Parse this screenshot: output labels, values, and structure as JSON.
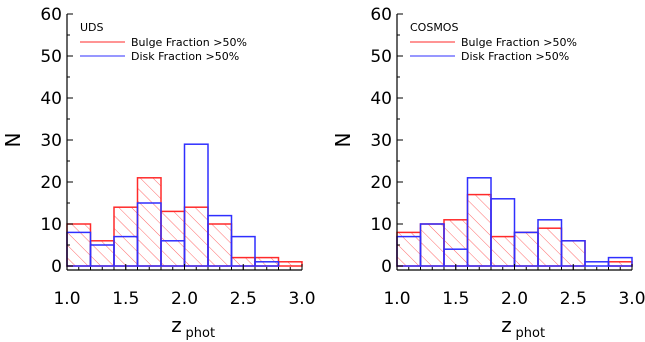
{
  "chart_data": [
    {
      "type": "histogram",
      "panel_label": "UDS",
      "xlabel": "z",
      "xlabel_sub": "phot",
      "ylabel": "N",
      "xlim": [
        1.0,
        3.0
      ],
      "ylim": [
        0,
        60
      ],
      "xticks": [
        "1.0",
        "1.5",
        "2.0",
        "2.5",
        "3.0"
      ],
      "yticks": [
        "0",
        "10",
        "20",
        "30",
        "40",
        "50",
        "60"
      ],
      "bin_edges": [
        1.0,
        1.2,
        1.4,
        1.6,
        1.8,
        2.0,
        2.2,
        2.4,
        2.6,
        2.8,
        3.0
      ],
      "legend_position": "top-right",
      "series": [
        {
          "name": "Bulge Fraction >50%",
          "color": "#ff2a2a",
          "hatched": true,
          "values": [
            10,
            6,
            14,
            21,
            13,
            14,
            10,
            2,
            2,
            1
          ]
        },
        {
          "name": "Disk Fraction >50%",
          "color": "#2f2fff",
          "hatched": false,
          "values": [
            8,
            5,
            7,
            15,
            6,
            29,
            12,
            7,
            1,
            0
          ]
        }
      ]
    },
    {
      "type": "histogram",
      "panel_label": "COSMOS",
      "xlabel": "z",
      "xlabel_sub": "phot",
      "ylabel": "N",
      "xlim": [
        1.0,
        3.0
      ],
      "ylim": [
        0,
        60
      ],
      "xticks": [
        "1.0",
        "1.5",
        "2.0",
        "2.5",
        "3.0"
      ],
      "yticks": [
        "0",
        "10",
        "20",
        "30",
        "40",
        "50",
        "60"
      ],
      "bin_edges": [
        1.0,
        1.2,
        1.4,
        1.6,
        1.8,
        2.0,
        2.2,
        2.4,
        2.6,
        2.8,
        3.0
      ],
      "legend_position": "top-right",
      "series": [
        {
          "name": "Bulge Fraction >50%",
          "color": "#ff2a2a",
          "hatched": true,
          "values": [
            8,
            10,
            11,
            17,
            7,
            8,
            9,
            6,
            0,
            1
          ]
        },
        {
          "name": "Disk Fraction >50%",
          "color": "#2f2fff",
          "hatched": false,
          "values": [
            7,
            10,
            4,
            21,
            16,
            8,
            11,
            6,
            1,
            2
          ]
        }
      ]
    }
  ]
}
